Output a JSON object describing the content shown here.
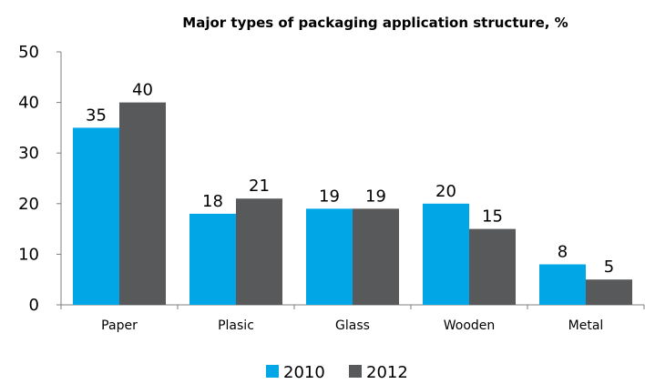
{
  "chart_data": {
    "type": "bar",
    "title": "Major types of packaging  application structure, %",
    "categories": [
      "Paper",
      "Plasic",
      "Glass",
      "Wooden",
      "Metal"
    ],
    "series": [
      {
        "name": "2010",
        "values": [
          35,
          18,
          19,
          20,
          8
        ],
        "color": "#00a6e6"
      },
      {
        "name": "2012",
        "values": [
          40,
          21,
          19,
          15,
          5
        ],
        "color": "#58595b"
      }
    ],
    "ylim": [
      0,
      50
    ],
    "yticks": [
      "0",
      "10",
      "20",
      "30",
      "40",
      "50"
    ],
    "xlabel": "",
    "ylabel": "",
    "grid": false,
    "legend": "bottom"
  }
}
